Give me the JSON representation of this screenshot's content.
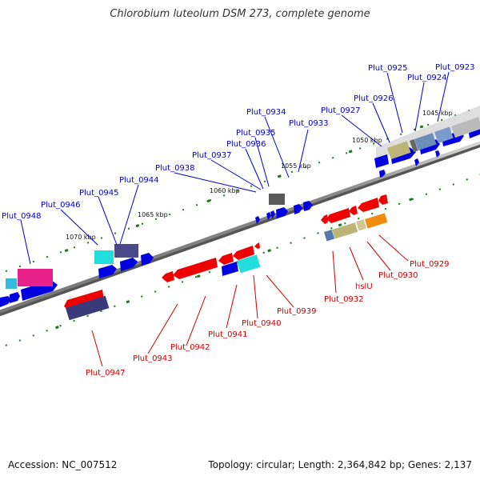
{
  "title": "Chlorobium luteolum DSM 273, complete genome",
  "footer": {
    "accession": "Accession: NC_007512",
    "summary": "Topology: circular; Length: 2,364,842 bp; Genes: 2,137"
  },
  "colors": {
    "forward_label": "#0000cc",
    "reverse_label": "#cc0000",
    "backbone": "#808080",
    "tick": "#1a7a1a"
  },
  "ruler_labels": [
    "1045 kbp",
    "1050 kbp",
    "1055 kbp",
    "1060 kbp",
    "1065 kbp",
    "1070 kbp"
  ],
  "forward_genes": [
    {
      "label": "Plut_0923"
    },
    {
      "label": "Plut_0924"
    },
    {
      "label": "Plut_0925"
    },
    {
      "label": "Plut_0926"
    },
    {
      "label": "Plut_0927"
    },
    {
      "label": "Plut_0933"
    },
    {
      "label": "Plut_0934"
    },
    {
      "label": "Plut_0935"
    },
    {
      "label": "Plut_0936"
    },
    {
      "label": "Plut_0937"
    },
    {
      "label": "Plut_0938"
    },
    {
      "label": "Plut_0944"
    },
    {
      "label": "Plut_0945"
    },
    {
      "label": "Plut_0946"
    },
    {
      "label": "Plut_0948"
    }
  ],
  "reverse_genes": [
    {
      "label": "Plut_0929"
    },
    {
      "label": "Plut_0930"
    },
    {
      "label": "hslU"
    },
    {
      "label": "Plut_0932"
    },
    {
      "label": "Plut_0939"
    },
    {
      "label": "Plut_0940"
    },
    {
      "label": "Plut_0941"
    },
    {
      "label": "Plut_0942"
    },
    {
      "label": "Plut_0943"
    },
    {
      "label": "Plut_0947"
    }
  ]
}
